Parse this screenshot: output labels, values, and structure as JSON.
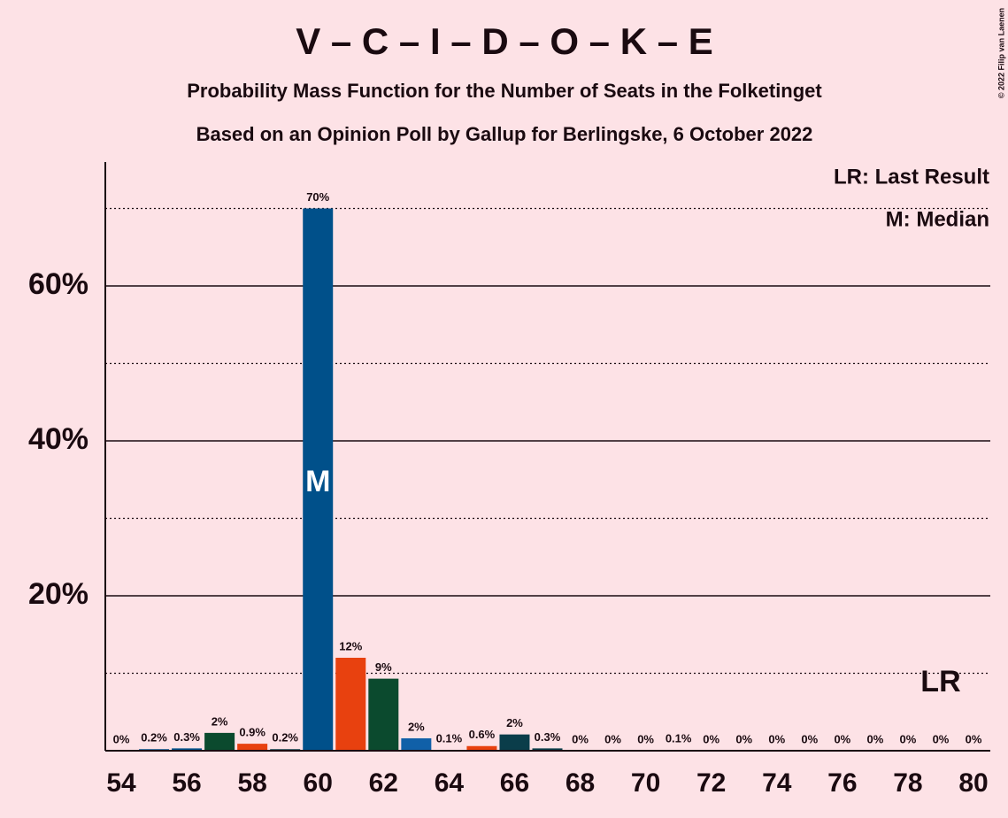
{
  "chart_data": {
    "type": "bar",
    "title": "V – C – I – D – O – K – E",
    "subtitle": "Probability Mass Function for the Number of Seats in the Folketinget",
    "subtitle2": "Based on an Opinion Poll by Gallup for Berlingske, 6 October 2022",
    "copyright": "© 2022 Filip van Laenen",
    "legend": [
      "LR: Last Result",
      "M: Median"
    ],
    "median": 60,
    "median_label": "M",
    "last_result": 79,
    "last_result_label": "LR",
    "categories": [
      54,
      null,
      56,
      null,
      58,
      null,
      60,
      null,
      62,
      null,
      64,
      null,
      66,
      null,
      68,
      null,
      70,
      null,
      72,
      null,
      74,
      null,
      76,
      null,
      78,
      null,
      80
    ],
    "values": [
      0,
      0.2,
      0.3,
      2.3,
      0.9,
      0.2,
      70,
      12,
      9.3,
      1.6,
      0.1,
      0.6,
      2.1,
      0.3,
      0,
      0,
      0,
      0.1,
      0,
      0,
      0,
      0,
      0,
      0,
      0,
      0,
      0
    ],
    "value_labels": [
      "0%",
      "0.2%",
      "0.3%",
      "2%",
      "0.9%",
      "0.2%",
      "70%",
      "12%",
      "9%",
      "2%",
      "0.1%",
      "0.6%",
      "2%",
      "0.3%",
      "0%",
      "0%",
      "0%",
      "0.1%",
      "0%",
      "0%",
      "0%",
      "0%",
      "0%",
      "0%",
      "0%",
      "0%",
      "0%"
    ],
    "colors": [
      "#00508a",
      "#00508a",
      "#00508a",
      "#0b4a2e",
      "#e8410f",
      "#0a3d4a",
      "#00508a",
      "#e8410f",
      "#0b4a2e",
      "#1060a8",
      "#00508a",
      "#e8410f",
      "#0a3d4a",
      "#0a3d4a",
      "#00508a",
      "#00508a",
      "#00508a",
      "#00508a",
      "#00508a",
      "#00508a",
      "#00508a",
      "#00508a",
      "#00508a",
      "#00508a",
      "#00508a",
      "#00508a",
      "#00508a"
    ],
    "ylim": [
      0,
      76
    ],
    "yticks": [
      {
        "value": 20,
        "label": "20%"
      },
      {
        "value": 40,
        "label": "40%"
      },
      {
        "value": 60,
        "label": "60%"
      }
    ],
    "minor_yticks": [
      10,
      30,
      50,
      70
    ],
    "grid": true
  }
}
